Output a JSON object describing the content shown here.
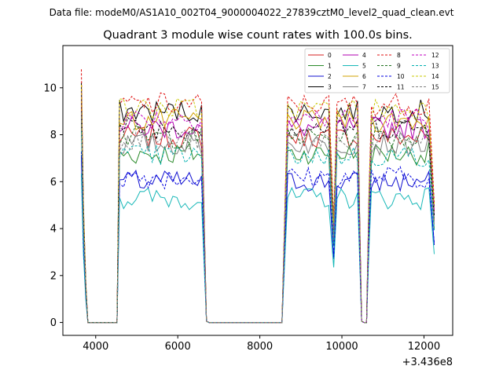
{
  "header_text": "Data file: modeM0/AS1A10_002T04_9000004022_27839cztM0_level2_quad_clean.evt",
  "chart_data": {
    "type": "line",
    "title": "Quadrant 3 module wise count rates with 100.0s bins.",
    "xlabel": "",
    "ylabel": "",
    "x_offset_label": "+3.436e8",
    "xlim": [
      3200,
      12700
    ],
    "ylim": [
      -0.55,
      11.8
    ],
    "x_ticks": [
      4000,
      6000,
      8000,
      10000,
      12000
    ],
    "y_ticks": [
      0,
      2,
      4,
      6,
      8,
      10
    ],
    "legend_location": "upper right",
    "segments": [
      {
        "x0": 3650,
        "x1": 4450,
        "dip": [
          3800,
          4450
        ]
      },
      {
        "x0": 4500,
        "x1": 6650
      },
      {
        "x0": 8600,
        "x1": 9800
      },
      {
        "x0": 9850,
        "x1": 10500
      },
      {
        "x0": 10700,
        "x1": 12250
      }
    ],
    "series": [
      {
        "name": "0",
        "color": "#d62020",
        "dashed": false,
        "level": 7.9
      },
      {
        "name": "1",
        "color": "#2a8a2a",
        "dashed": false,
        "level": 7.2
      },
      {
        "name": "2",
        "color": "#1010d0",
        "dashed": false,
        "level": 6.0
      },
      {
        "name": "3",
        "color": "#000000",
        "dashed": false,
        "level": 9.0
      },
      {
        "name": "4",
        "color": "#b000b0",
        "dashed": false,
        "level": 8.3
      },
      {
        "name": "5",
        "color": "#18b8b8",
        "dashed": false,
        "level": 5.3
      },
      {
        "name": "6",
        "color": "#d0a000",
        "dashed": false,
        "level": 8.6
      },
      {
        "name": "7",
        "color": "#808080",
        "dashed": false,
        "level": 7.6
      },
      {
        "name": "8",
        "color": "#e01010",
        "dashed": true,
        "level": 9.3
      },
      {
        "name": "9",
        "color": "#207020",
        "dashed": true,
        "level": 7.9
      },
      {
        "name": "10",
        "color": "#0000e0",
        "dashed": true,
        "level": 6.2
      },
      {
        "name": "11",
        "color": "#000000",
        "dashed": true,
        "level": 8.3
      },
      {
        "name": "12",
        "color": "#c000c0",
        "dashed": true,
        "level": 8.7
      },
      {
        "name": "13",
        "color": "#00b0b0",
        "dashed": true,
        "level": 7.1
      },
      {
        "name": "14",
        "color": "#c8c800",
        "dashed": true,
        "level": 9.1
      },
      {
        "name": "15",
        "color": "#808080",
        "dashed": true,
        "level": 7.8
      }
    ]
  }
}
